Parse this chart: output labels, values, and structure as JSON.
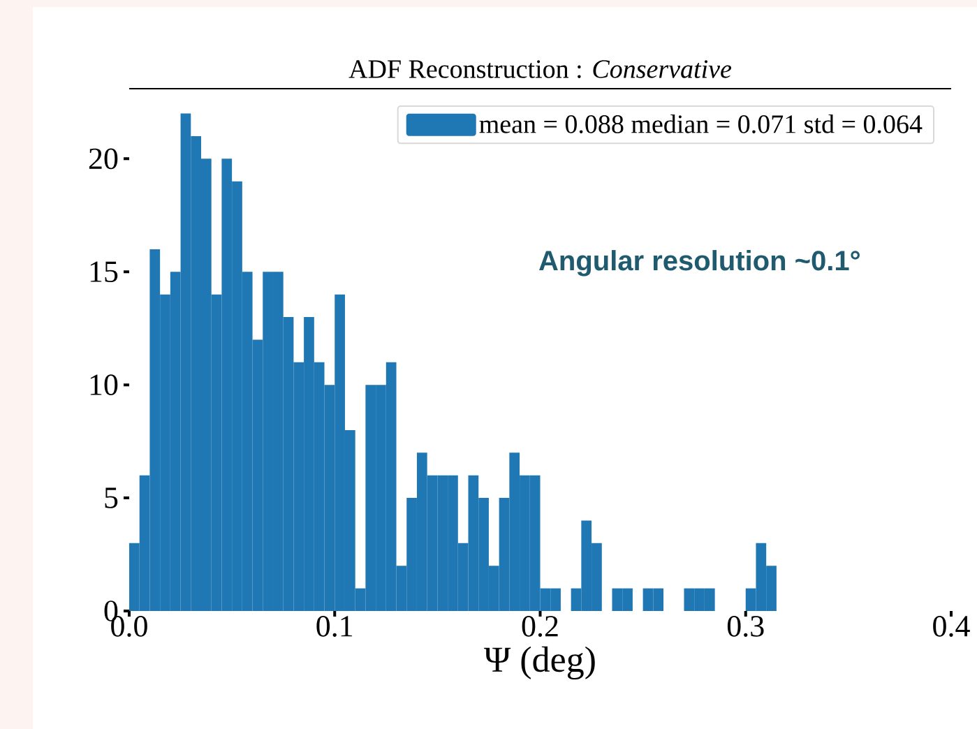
{
  "chart_data": {
    "type": "histogram",
    "title": "ADF Reconstruction : *Conservative*",
    "xlabel": "Ψ (deg)",
    "bins": [
      0,
      0.005,
      0.01,
      0.015,
      0.02,
      0.025,
      0.03,
      0.035,
      0.04,
      0.045,
      0.05,
      0.055,
      0.06,
      0.065,
      0.07,
      0.075,
      0.08,
      0.085,
      0.09,
      0.095,
      0.1,
      0.105,
      0.11,
      0.115,
      0.12,
      0.125,
      0.13,
      0.135,
      0.14,
      0.145,
      0.15,
      0.155,
      0.16,
      0.165,
      0.17,
      0.175,
      0.18,
      0.185,
      0.19,
      0.195,
      0.2,
      0.205,
      0.21,
      0.215,
      0.22,
      0.225,
      0.23,
      0.235,
      0.24,
      0.245,
      0.25,
      0.255,
      0.26,
      0.265,
      0.27,
      0.275,
      0.28,
      0.285,
      0.29,
      0.295,
      0.3,
      0.305,
      0.31,
      0.315
    ],
    "series": [
      {
        "name": "mean = 0.088 median = 0.071 std = 0.064",
        "color": "#1f77b4",
        "values": [
          3,
          6,
          16,
          14,
          15,
          22,
          21,
          20,
          14,
          20,
          19,
          15,
          12,
          15,
          15,
          13,
          11,
          13,
          11,
          10,
          14,
          8,
          1,
          10,
          10,
          11,
          2,
          5,
          7,
          6,
          6,
          6,
          3,
          6,
          5,
          2,
          5,
          7,
          6,
          6,
          1,
          1,
          0,
          1,
          4,
          3,
          0,
          1,
          1,
          0,
          1,
          1,
          0,
          0,
          1,
          1,
          1,
          0,
          0,
          0,
          1,
          3,
          2
        ]
      }
    ],
    "xlim": [
      0,
      0.4
    ],
    "ylim": [
      0,
      23.1
    ],
    "xticks": [
      {
        "value": 0,
        "label": "0.0"
      },
      0.1,
      0.2,
      0.3,
      0.4
    ],
    "yticks": [
      0,
      5,
      10,
      15,
      20
    ],
    "grid": false,
    "legend": "top right",
    "annotations": [
      "Angular resolution ~0.1°"
    ]
  }
}
